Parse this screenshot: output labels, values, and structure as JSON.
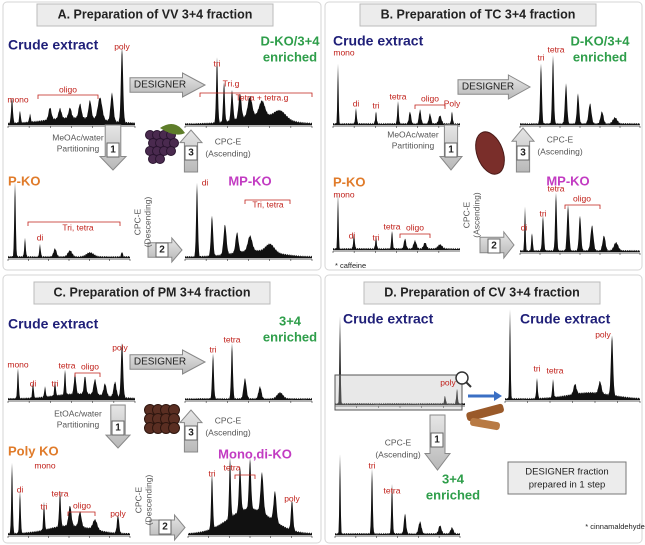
{
  "panels": [
    {
      "title": "A. Preparation of VV 3+4 fraction",
      "texts": [
        "Crude extract",
        "poly",
        "mono",
        "oligo",
        "DESIGNER",
        "D-KO/3+4",
        "enriched",
        "tri",
        "Tri.g",
        "Tetra + tetra.g",
        "MeOAc/water",
        "Partitioning",
        "1",
        "3",
        "CPC-E",
        "(Ascending)",
        "P-KO",
        "di",
        "Tri, tetra",
        "CPC-E",
        "(Descending)",
        "2",
        "MP-KO",
        "di",
        "Tri, tetra"
      ]
    },
    {
      "title": "B. Preparation of TC 3+4 fraction",
      "texts": [
        "Crude extract",
        "mono",
        "di",
        "tri",
        "tetra",
        "oligo",
        "Poly",
        "DESIGNER",
        "D-KO/3+4",
        "enriched",
        "tri",
        "tetra",
        "MeOAc/water",
        "Partitioning",
        "1",
        "3",
        "CPC-E",
        "(Ascending)",
        "P-KO",
        "mono",
        "di",
        "tri",
        "tetra",
        "oligo",
        "* caffeine",
        "CPC-E",
        "(Ascending)",
        "2",
        "MP-KO",
        "di",
        "tri",
        "tetra",
        "oligo"
      ]
    },
    {
      "title": "C. Preparation of PM 3+4 fraction",
      "texts": [
        "Crude extract",
        "mono",
        "di",
        "tri",
        "tetra",
        "oligo",
        "poly",
        "DESIGNER",
        "3+4",
        "enriched",
        "tri",
        "tetra",
        "EtOAc/water",
        "Partitioning",
        "1",
        "3",
        "CPC-E",
        "(Ascending)",
        "Poly KO",
        "mono",
        "di",
        "tri",
        "tetra",
        "oligo",
        "poly",
        "CPC-E",
        "(Descending)",
        "2",
        "Mono,di-KO",
        "tri",
        "tetra",
        "poly"
      ]
    },
    {
      "title": "D. Preparation of CV 3+4 fraction",
      "texts": [
        "Crude extract",
        "poly",
        "Crude extract",
        "tri",
        "tetra",
        "poly",
        "CPC-E",
        "(Ascending)",
        "1",
        "3+4",
        "enriched",
        "tri",
        "tetra",
        "DESIGNER fraction",
        "prepared in 1 step",
        "* cinnamaldehyde"
      ]
    }
  ]
}
